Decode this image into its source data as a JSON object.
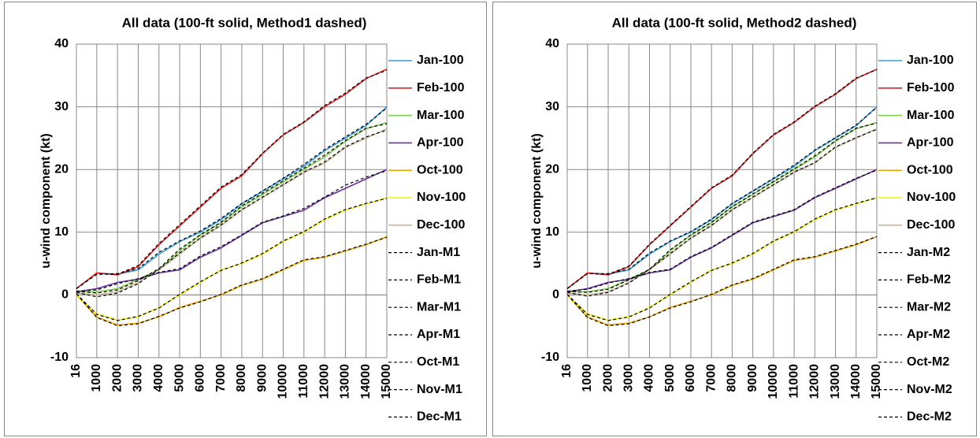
{
  "chart_data": [
    {
      "type": "line",
      "title": "All data (100-ft solid, Method1 dashed)",
      "y_label": "u-wind component (kt)",
      "x": [
        16,
        1000,
        2000,
        3000,
        4000,
        5000,
        6000,
        7000,
        8000,
        9000,
        10000,
        11000,
        12000,
        13000,
        14000,
        15000
      ],
      "xlim": [
        16,
        15000
      ],
      "xticks": [
        16,
        1000,
        2000,
        3000,
        4000,
        5000,
        6000,
        7000,
        8000,
        9000,
        10000,
        11000,
        12000,
        13000,
        14000,
        15000
      ],
      "ylim": [
        -10,
        40
      ],
      "yticks": [
        -10,
        0,
        10,
        20,
        30,
        40
      ],
      "grid": true,
      "legend": "right",
      "series": [
        {
          "name": "Jan-100",
          "color": "#3a9bd9",
          "dash": "solid",
          "values": [
            1,
            3.5,
            3.3,
            4,
            6.5,
            8.5,
            10,
            12,
            14.5,
            16.5,
            18.5,
            20.5,
            23,
            25,
            27,
            30
          ]
        },
        {
          "name": "Feb-100",
          "color": "#e02020",
          "dash": "solid",
          "values": [
            1,
            3.5,
            3.2,
            4.5,
            8,
            11,
            14,
            17,
            19,
            22.5,
            25.5,
            27.5,
            30,
            32,
            34.5,
            36
          ]
        },
        {
          "name": "Mar-100",
          "color": "#80cc50",
          "dash": "solid",
          "values": [
            0.5,
            0.5,
            1,
            2.5,
            4,
            7,
            9.5,
            11.5,
            14,
            16,
            18,
            20,
            22,
            24.5,
            26.5,
            27.5
          ]
        },
        {
          "name": "Apr-100",
          "color": "#6a2fa0",
          "dash": "solid",
          "values": [
            0.5,
            1,
            2,
            2.5,
            3.5,
            4,
            6,
            7.5,
            9.5,
            11.5,
            12.5,
            13.5,
            15.5,
            17,
            18.5,
            20
          ]
        },
        {
          "name": "Oct-100",
          "color": "#f0a800",
          "dash": "solid",
          "values": [
            0,
            -3.5,
            -4.8,
            -4.5,
            -3.5,
            -2,
            -1,
            0,
            1.5,
            2.5,
            4,
            5.5,
            6,
            7,
            8,
            9.3
          ]
        },
        {
          "name": "Nov-100",
          "color": "#f2ee10",
          "dash": "solid",
          "values": [
            0,
            -3,
            -4,
            -3.5,
            -2,
            0,
            2,
            4,
            5,
            6.5,
            8.5,
            10,
            12,
            13.5,
            14.5,
            15.5
          ]
        },
        {
          "name": "Dec-100",
          "color": "#c8b898",
          "dash": "solid",
          "values": [
            0.3,
            0,
            0.5,
            2,
            4,
            6.5,
            9,
            11,
            13.5,
            15.5,
            17.5,
            19.5,
            21,
            23.5,
            25,
            26.5
          ]
        },
        {
          "name": "Jan-M1",
          "color": "#000000",
          "dash": "dashed",
          "values": [
            1,
            3.3,
            3.4,
            4.2,
            6.8,
            8.6,
            10.2,
            12.2,
            14.6,
            16.6,
            18.6,
            20.8,
            23.2,
            25.2,
            27.2,
            29.8
          ]
        },
        {
          "name": "Feb-M1",
          "color": "#000000",
          "dash": "dashed",
          "values": [
            1,
            3.3,
            3.3,
            4.7,
            8.2,
            11.2,
            14.2,
            17.2,
            19.2,
            22.6,
            25.6,
            27.6,
            30.2,
            32.2,
            34.6,
            35.8
          ]
        },
        {
          "name": "Mar-M1",
          "color": "#000000",
          "dash": "dashed",
          "values": [
            0.6,
            0.3,
            0.8,
            2.3,
            4.2,
            7.3,
            9.6,
            11.6,
            14.2,
            16.2,
            18.2,
            20.2,
            22.3,
            24.6,
            26.6,
            27.3
          ]
        },
        {
          "name": "Apr-M1",
          "color": "#000000",
          "dash": "dashed",
          "values": [
            0.6,
            0.8,
            1.8,
            2.6,
            3.6,
            4.2,
            6.2,
            7.7,
            9.6,
            11.6,
            12.6,
            13.8,
            15.6,
            17.5,
            18.8,
            19.8
          ]
        },
        {
          "name": "Oct-M1",
          "color": "#000000",
          "dash": "dashed",
          "values": [
            0.2,
            -3.6,
            -4.9,
            -4.6,
            -3.4,
            -2.1,
            -1.1,
            0.1,
            1.6,
            2.6,
            4.1,
            5.6,
            6.1,
            7.1,
            8.1,
            9.2
          ]
        },
        {
          "name": "Nov-M1",
          "color": "#000000",
          "dash": "dashed",
          "values": [
            0.2,
            -3.1,
            -4.1,
            -3.4,
            -2.1,
            0.1,
            2.1,
            3.9,
            5.1,
            6.6,
            8.6,
            10.1,
            12.1,
            13.6,
            14.6,
            15.4
          ]
        },
        {
          "name": "Dec-M1",
          "color": "#000000",
          "dash": "dashed",
          "values": [
            0.4,
            -0.3,
            0.3,
            1.8,
            4.1,
            6.7,
            9.1,
            11.2,
            13.6,
            15.6,
            17.6,
            19.6,
            21.2,
            23.6,
            25.2,
            26.3
          ]
        }
      ]
    },
    {
      "type": "line",
      "title": "All data (100-ft solid, Method2 dashed)",
      "y_label": "u-wind component (kt)",
      "x": [
        16,
        1000,
        2000,
        3000,
        4000,
        5000,
        6000,
        7000,
        8000,
        9000,
        10000,
        11000,
        12000,
        13000,
        14000,
        15000
      ],
      "xlim": [
        16,
        15000
      ],
      "xticks": [
        16,
        1000,
        2000,
        3000,
        4000,
        5000,
        6000,
        7000,
        8000,
        9000,
        10000,
        11000,
        12000,
        13000,
        14000,
        15000
      ],
      "ylim": [
        -10,
        40
      ],
      "yticks": [
        -10,
        0,
        10,
        20,
        30,
        40
      ],
      "grid": true,
      "legend": "right",
      "series": [
        {
          "name": "Jan-100",
          "color": "#3a9bd9",
          "dash": "solid",
          "values": [
            1,
            3.5,
            3.3,
            4,
            6.5,
            8.5,
            10,
            12,
            14.5,
            16.5,
            18.5,
            20.5,
            23,
            25,
            27,
            30
          ]
        },
        {
          "name": "Feb-100",
          "color": "#e02020",
          "dash": "solid",
          "values": [
            1,
            3.5,
            3.2,
            4.5,
            8,
            11,
            14,
            17,
            19,
            22.5,
            25.5,
            27.5,
            30,
            32,
            34.5,
            36
          ]
        },
        {
          "name": "Mar-100",
          "color": "#80cc50",
          "dash": "solid",
          "values": [
            0.5,
            0.5,
            1,
            2.5,
            4,
            7,
            9.5,
            11.5,
            14,
            16,
            18,
            20,
            22,
            24.5,
            26.5,
            27.5
          ]
        },
        {
          "name": "Apr-100",
          "color": "#6a2fa0",
          "dash": "solid",
          "values": [
            0.5,
            1,
            2,
            2.5,
            3.5,
            4,
            6,
            7.5,
            9.5,
            11.5,
            12.5,
            13.5,
            15.5,
            17,
            18.5,
            20
          ]
        },
        {
          "name": "Oct-100",
          "color": "#f0a800",
          "dash": "solid",
          "values": [
            0,
            -3.5,
            -4.8,
            -4.5,
            -3.5,
            -2,
            -1,
            0,
            1.5,
            2.5,
            4,
            5.5,
            6,
            7,
            8,
            9.3
          ]
        },
        {
          "name": "Nov-100",
          "color": "#f2ee10",
          "dash": "solid",
          "values": [
            0,
            -3,
            -4,
            -3.5,
            -2,
            0,
            2,
            4,
            5,
            6.5,
            8.5,
            10,
            12,
            13.5,
            14.5,
            15.5
          ]
        },
        {
          "name": "Dec-100",
          "color": "#c8b898",
          "dash": "solid",
          "values": [
            0.3,
            0,
            0.5,
            2,
            4,
            6.5,
            9,
            11,
            13.5,
            15.5,
            17.5,
            19.5,
            21,
            23.5,
            25,
            26.5
          ]
        },
        {
          "name": "Jan-M2",
          "color": "#000000",
          "dash": "dashed",
          "values": [
            1,
            3.4,
            3.4,
            4.1,
            6.7,
            8.6,
            10.1,
            12.1,
            14.6,
            16.6,
            18.6,
            20.7,
            23.1,
            25.1,
            27.1,
            29.9
          ]
        },
        {
          "name": "Feb-M2",
          "color": "#000000",
          "dash": "dashed",
          "values": [
            1,
            3.4,
            3.3,
            4.6,
            8.1,
            11.1,
            14.1,
            17.1,
            19.1,
            22.6,
            25.6,
            27.6,
            30.1,
            32.1,
            34.6,
            35.9
          ]
        },
        {
          "name": "Mar-M2",
          "color": "#000000",
          "dash": "dashed",
          "values": [
            0.6,
            0.4,
            0.9,
            2.4,
            4.1,
            7.2,
            9.6,
            11.6,
            14.1,
            16.1,
            18.1,
            20.1,
            22.2,
            24.6,
            26.6,
            27.4
          ]
        },
        {
          "name": "Apr-M2",
          "color": "#000000",
          "dash": "dashed",
          "values": [
            0.6,
            0.9,
            1.9,
            2.6,
            3.6,
            4.1,
            6.1,
            7.6,
            9.6,
            11.6,
            12.6,
            13.6,
            15.6,
            17.1,
            18.6,
            19.9
          ]
        },
        {
          "name": "Oct-M2",
          "color": "#000000",
          "dash": "dashed",
          "values": [
            0.1,
            -3.6,
            -4.9,
            -4.6,
            -3.5,
            -2.1,
            -1.1,
            0.1,
            1.6,
            2.6,
            4.1,
            5.6,
            6.1,
            7.1,
            8.1,
            9.3
          ]
        },
        {
          "name": "Nov-M2",
          "color": "#000000",
          "dash": "dashed",
          "values": [
            0.1,
            -3.1,
            -4.1,
            -3.5,
            -2.1,
            0.1,
            2.1,
            3.9,
            5.1,
            6.6,
            8.6,
            10.1,
            12.1,
            13.6,
            14.6,
            15.5
          ]
        },
        {
          "name": "Dec-M2",
          "color": "#000000",
          "dash": "dashed",
          "values": [
            0.4,
            -0.2,
            0.4,
            1.9,
            4.1,
            6.6,
            9.1,
            11.1,
            13.6,
            15.6,
            17.6,
            19.6,
            21.1,
            23.6,
            25.1,
            26.4
          ]
        }
      ]
    }
  ]
}
